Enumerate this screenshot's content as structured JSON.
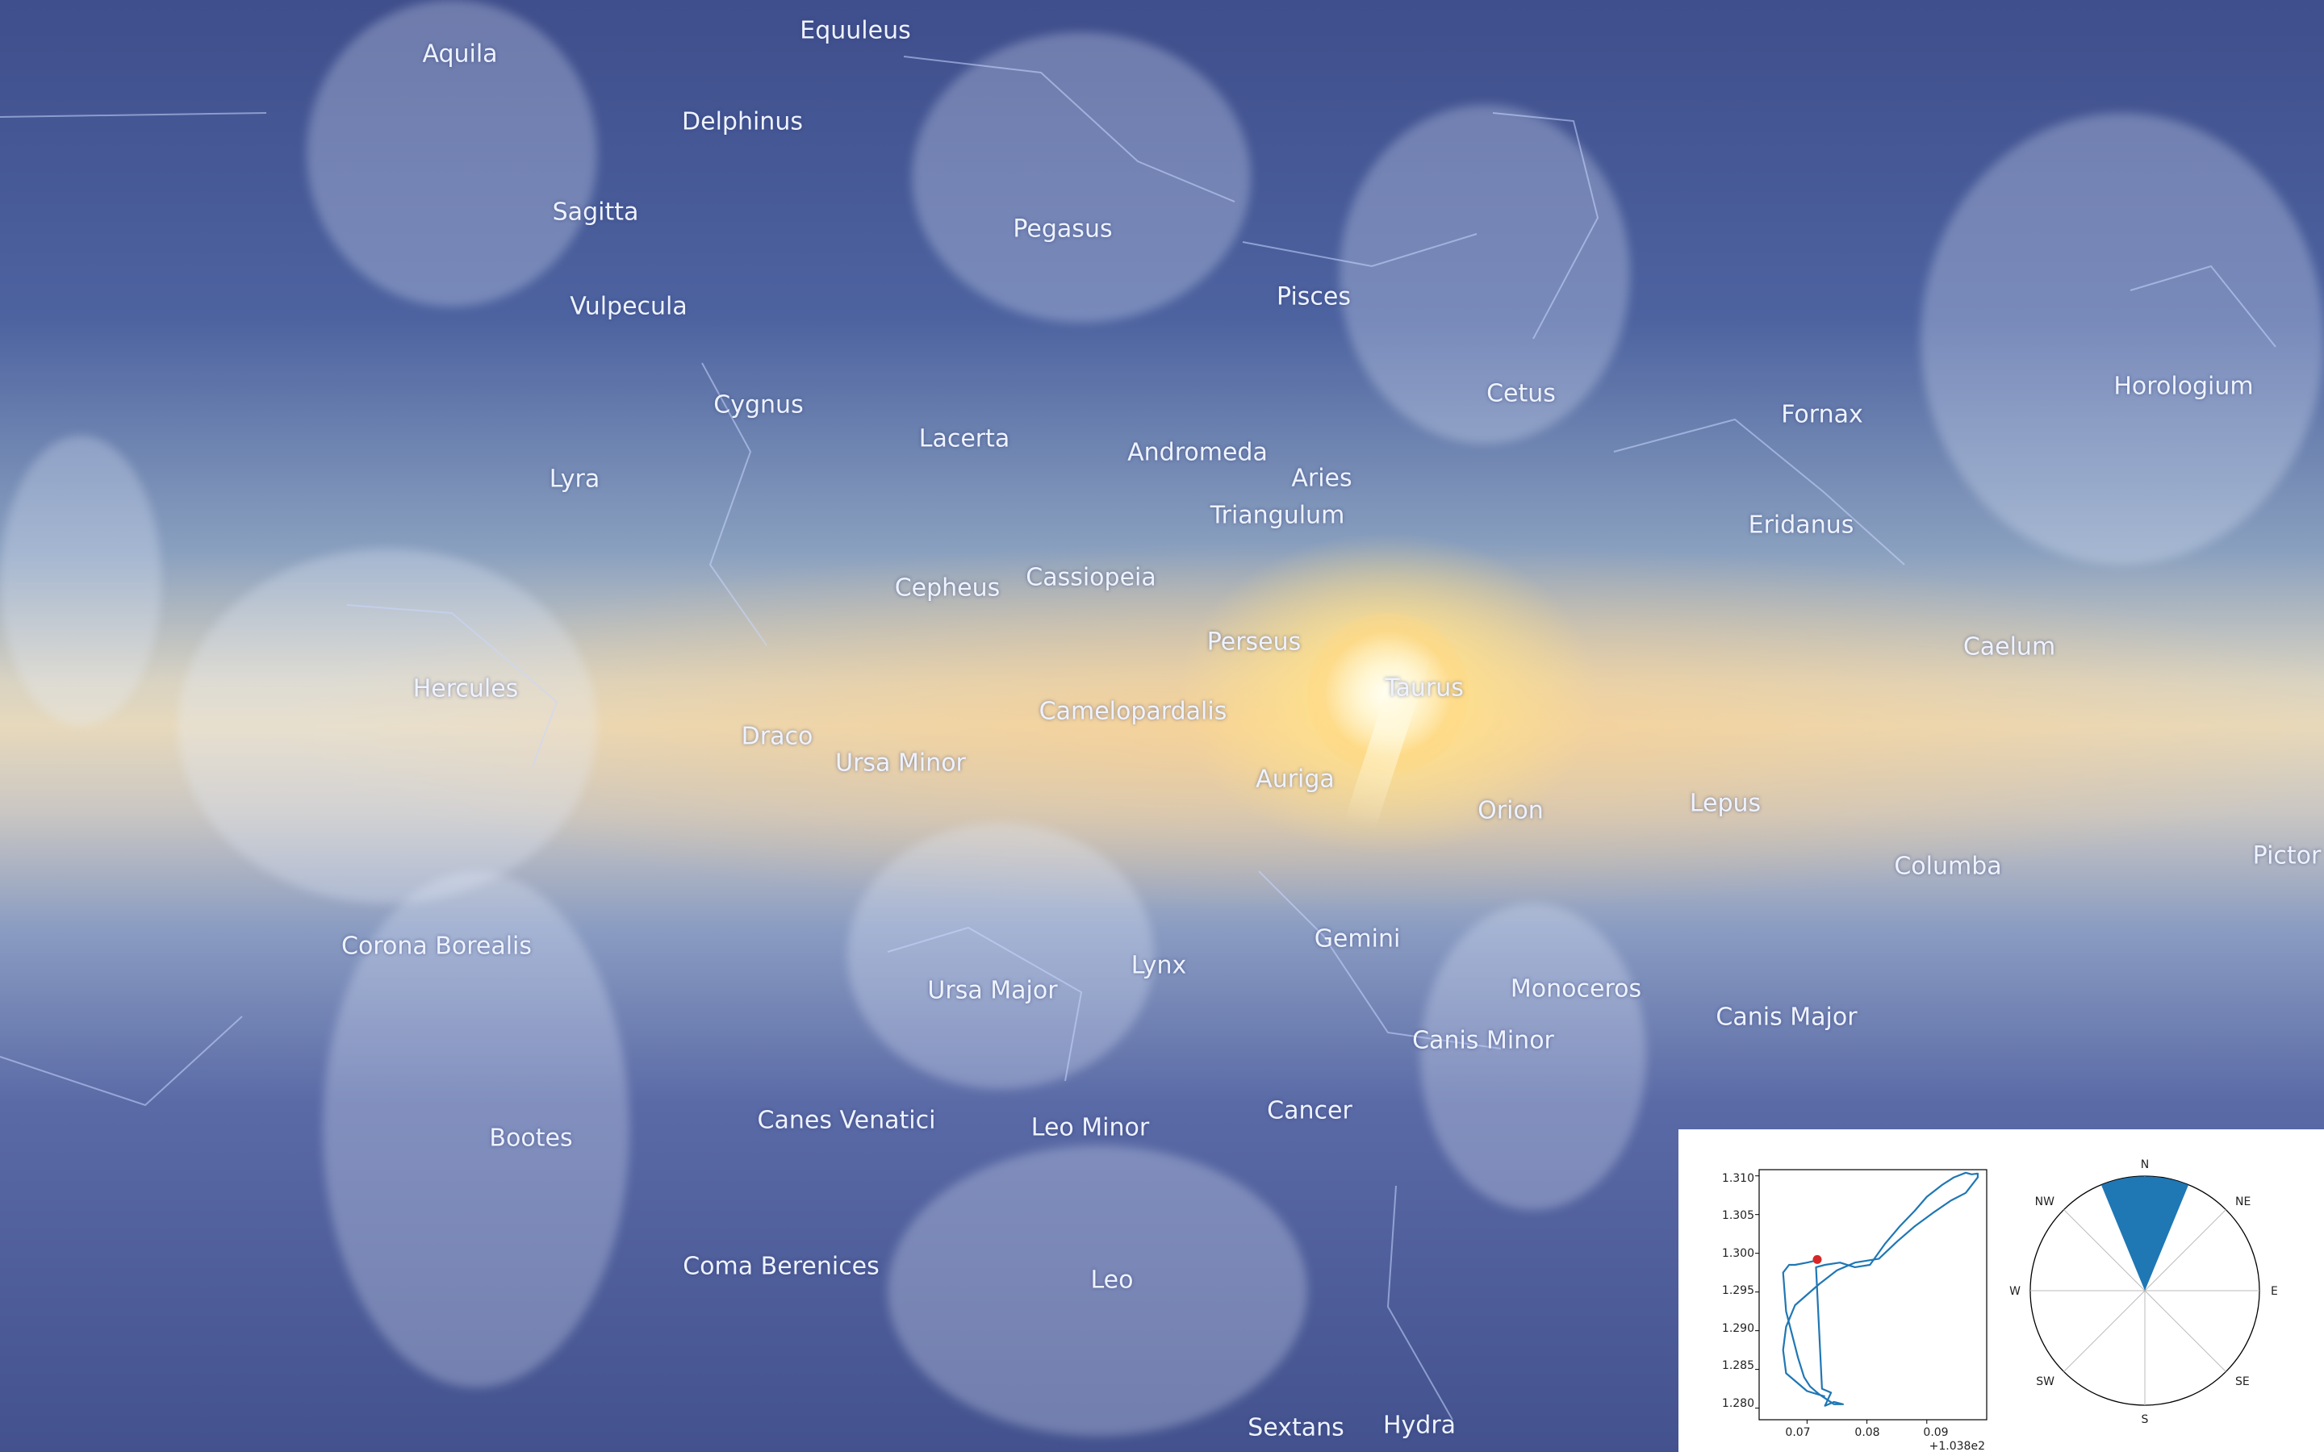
{
  "sky": {
    "constellations": [
      {
        "name": "Aquila"
      },
      {
        "name": "Equuleus"
      },
      {
        "name": "Delphinus"
      },
      {
        "name": "Sagitta"
      },
      {
        "name": "Vulpecula"
      },
      {
        "name": "Cygnus"
      },
      {
        "name": "Lyra"
      },
      {
        "name": "Pegasus"
      },
      {
        "name": "Pisces"
      },
      {
        "name": "Cetus"
      },
      {
        "name": "Fornax"
      },
      {
        "name": "Horologium"
      },
      {
        "name": "Lacerta"
      },
      {
        "name": "Andromeda"
      },
      {
        "name": "Aries"
      },
      {
        "name": "Triangulum"
      },
      {
        "name": "Eridanus"
      },
      {
        "name": "Cepheus"
      },
      {
        "name": "Cassiopeia"
      },
      {
        "name": "Perseus"
      },
      {
        "name": "Caelum"
      },
      {
        "name": "Hercules"
      },
      {
        "name": "Draco"
      },
      {
        "name": "Ursa Minor"
      },
      {
        "name": "Camelopardalis"
      },
      {
        "name": "Taurus"
      },
      {
        "name": "Auriga"
      },
      {
        "name": "Orion"
      },
      {
        "name": "Lepus"
      },
      {
        "name": "Columba"
      },
      {
        "name": "Pictor"
      },
      {
        "name": "Corona Borealis"
      },
      {
        "name": "Gemini"
      },
      {
        "name": "Lynx"
      },
      {
        "name": "Ursa Major"
      },
      {
        "name": "Monoceros"
      },
      {
        "name": "Canis Major"
      },
      {
        "name": "Canis Minor"
      },
      {
        "name": "Bootes"
      },
      {
        "name": "Canes Venatici"
      },
      {
        "name": "Leo Minor"
      },
      {
        "name": "Cancer"
      },
      {
        "name": "Coma Berenices"
      },
      {
        "name": "Leo"
      },
      {
        "name": "Sextans"
      },
      {
        "name": "Hydra"
      }
    ],
    "sun_color": "#fff6d8"
  },
  "inset": {
    "track": {
      "y_ticks": [
        "1.310",
        "1.305",
        "1.300",
        "1.295",
        "1.290",
        "1.285",
        "1.280"
      ],
      "x_ticks": [
        "0.07",
        "0.08",
        "0.09"
      ],
      "x_offset": "+1.038e2",
      "line_color": "#1f77b4",
      "marker_color": "#d62728"
    },
    "chart_data": {
      "type": "line",
      "x": [
        103.873,
        103.87,
        103.8665,
        103.866,
        103.8665,
        103.868,
        103.872,
        103.875,
        103.878,
        103.882,
        103.885,
        103.888,
        103.891,
        103.894,
        103.8965,
        103.8985,
        103.8985,
        103.8975,
        103.8965,
        103.8945,
        103.8925,
        103.89,
        103.888,
        103.8855,
        103.883,
        103.8805,
        103.878,
        103.8755,
        103.873,
        103.8715,
        103.8725,
        103.874,
        103.873,
        103.8745,
        103.876,
        103.8745,
        103.872,
        103.8705,
        103.8695,
        103.8685,
        103.8675,
        103.8665,
        103.866,
        103.867,
        103.868,
        103.87,
        103.8717
      ],
      "y": [
        1.2815,
        1.2822,
        1.2845,
        1.2875,
        1.2905,
        1.2933,
        1.296,
        1.2978,
        1.2988,
        1.2993,
        1.3015,
        1.3035,
        1.3052,
        1.3068,
        1.3078,
        1.3098,
        1.3103,
        1.3102,
        1.3104,
        1.3098,
        1.3088,
        1.3073,
        1.3055,
        1.3035,
        1.3012,
        1.2985,
        1.2982,
        1.2988,
        1.2985,
        1.2982,
        1.2825,
        1.282,
        1.2803,
        1.2808,
        1.2805,
        1.2805,
        1.2818,
        1.2828,
        1.284,
        1.2865,
        1.2895,
        1.2925,
        1.2975,
        1.2985,
        1.2985,
        1.2988,
        1.2991
      ],
      "marker": {
        "x": 103.8717,
        "y": 1.2992
      },
      "xlim": [
        103.862,
        103.9
      ],
      "ylim": [
        1.2785,
        1.3108
      ]
    },
    "compass": {
      "labels": [
        "N",
        "NE",
        "E",
        "SE",
        "S",
        "SW",
        "W",
        "NW"
      ],
      "heading_fill": "#1f77b4"
    }
  }
}
